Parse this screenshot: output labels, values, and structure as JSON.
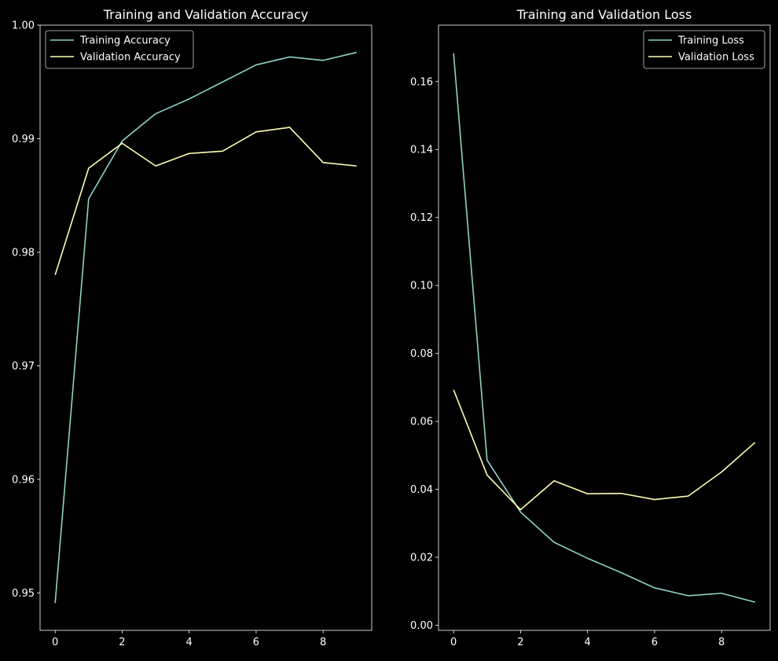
{
  "chart_data": [
    {
      "type": "line",
      "title": "Training and Validation Accuracy",
      "xlabel": "",
      "ylabel": "",
      "x": [
        0,
        1,
        2,
        3,
        4,
        5,
        6,
        7,
        8,
        9
      ],
      "xlim": [
        -0.45,
        9.45
      ],
      "ylim": [
        0.9467,
        1.0
      ],
      "xticks": [
        0,
        2,
        4,
        6,
        8
      ],
      "yticks": [
        0.95,
        0.96,
        0.97,
        0.98,
        0.99,
        1.0
      ],
      "ytick_labels": [
        "0.95",
        "0.96",
        "0.97",
        "0.98",
        "0.99",
        "1.00"
      ],
      "grid": false,
      "legend_position": "upper-left",
      "series": [
        {
          "name": "Training Accuracy",
          "color": "#8dd3c7",
          "values": [
            0.9491,
            0.9847,
            0.9898,
            0.9922,
            0.9935,
            0.995,
            0.9965,
            0.9972,
            0.9969,
            0.9976
          ]
        },
        {
          "name": "Validation Accuracy",
          "color": "#ffffb3",
          "values": [
            0.978,
            0.9874,
            0.9896,
            0.9876,
            0.9887,
            0.9889,
            0.9906,
            0.991,
            0.9879,
            0.9876
          ]
        }
      ]
    },
    {
      "type": "line",
      "title": "Training and Validation Loss",
      "xlabel": "",
      "ylabel": "",
      "x": [
        0,
        1,
        2,
        3,
        4,
        5,
        6,
        7,
        8,
        9
      ],
      "xlim": [
        -0.45,
        9.45
      ],
      "ylim": [
        -0.0015,
        0.1766
      ],
      "xticks": [
        0,
        2,
        4,
        6,
        8
      ],
      "yticks": [
        0.0,
        0.02,
        0.04,
        0.06,
        0.08,
        0.1,
        0.12,
        0.14,
        0.16
      ],
      "ytick_labels": [
        "0.00",
        "0.02",
        "0.04",
        "0.06",
        "0.08",
        "0.10",
        "0.12",
        "0.14",
        "0.16"
      ],
      "grid": false,
      "legend_position": "upper-right",
      "series": [
        {
          "name": "Training Loss",
          "color": "#8dd3c7",
          "values": [
            0.1683,
            0.0486,
            0.0333,
            0.0244,
            0.0197,
            0.0155,
            0.011,
            0.0087,
            0.0094,
            0.0068
          ]
        },
        {
          "name": "Validation Loss",
          "color": "#ffffb3",
          "values": [
            0.0693,
            0.0442,
            0.034,
            0.0425,
            0.0387,
            0.0388,
            0.037,
            0.038,
            0.0451,
            0.0538
          ]
        }
      ]
    }
  ]
}
